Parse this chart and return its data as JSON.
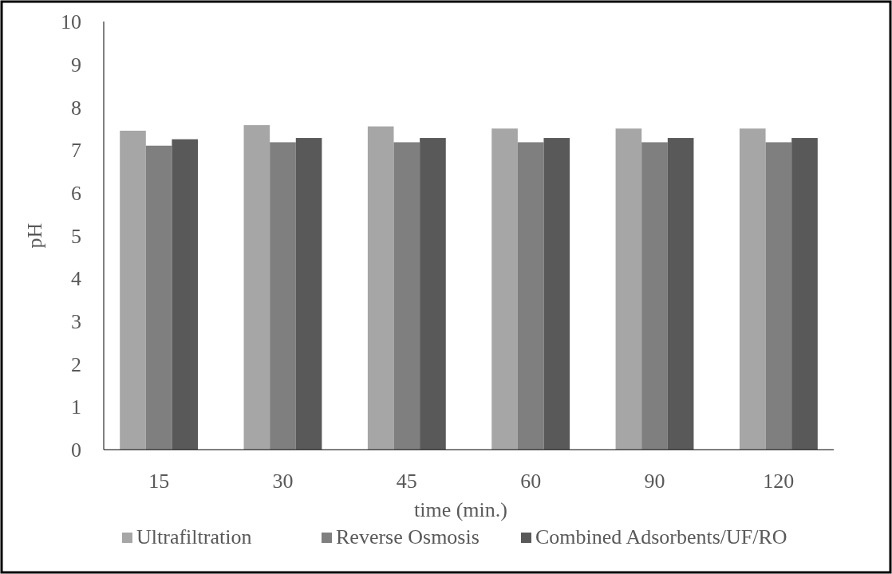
{
  "chart_data": {
    "type": "bar",
    "xlabel": "time (min.)",
    "ylabel": "pH",
    "categories": [
      "15",
      "30",
      "45",
      "60",
      "90",
      "120"
    ],
    "series": [
      {
        "name": "Ultrafiltration",
        "color": "#a6a6a6",
        "values": [
          7.45,
          7.58,
          7.55,
          7.5,
          7.5,
          7.5
        ]
      },
      {
        "name": "Reverse Osmosis",
        "color": "#7f7f7f",
        "values": [
          7.1,
          7.18,
          7.18,
          7.18,
          7.18,
          7.18
        ]
      },
      {
        "name": "Combined Adsorbents/UF/RO",
        "color": "#595959",
        "values": [
          7.25,
          7.28,
          7.28,
          7.28,
          7.28,
          7.28
        ]
      }
    ],
    "ylim": [
      0,
      10
    ],
    "yticks": [
      0,
      1,
      2,
      3,
      4,
      5,
      6,
      7,
      8,
      9,
      10
    ],
    "grid": false,
    "legend": "bottom"
  }
}
